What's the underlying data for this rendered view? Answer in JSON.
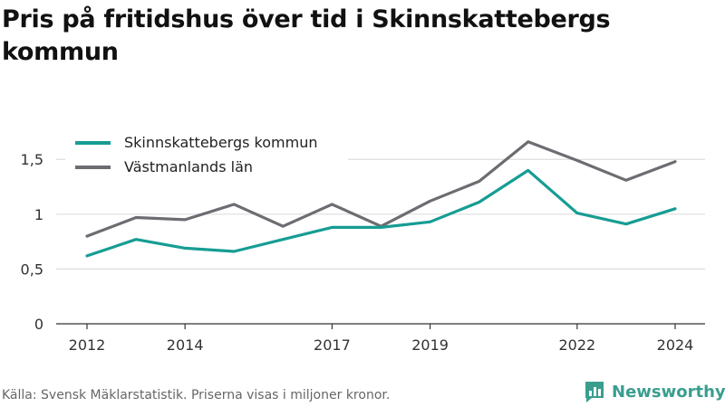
{
  "title": "Pris på fritidshus över tid i Skinnskattebergs kommun",
  "source": "Källa: Svensk Mäklarstatistik. Priserna visas i miljoner kronor.",
  "brand": {
    "name": "Newsworthy",
    "icon": "bar-chart-speech-bubble-icon",
    "color": "#3a9e8f"
  },
  "chart_data": {
    "type": "line",
    "x": [
      2012,
      2013,
      2014,
      2015,
      2016,
      2017,
      2018,
      2019,
      2020,
      2021,
      2022,
      2023,
      2024
    ],
    "x_ticks": [
      2012,
      2014,
      2017,
      2019,
      2022,
      2024
    ],
    "y_ticks": [
      0,
      0.5,
      1,
      1.5
    ],
    "y_tick_labels": [
      "0",
      "0,5",
      "1",
      "1,5"
    ],
    "ylim": [
      0,
      1.7
    ],
    "grid": true,
    "legend_position": "top-left",
    "series": [
      {
        "name": "Skinnskattebergs kommun",
        "color": "#169d93",
        "values": [
          0.62,
          0.77,
          0.69,
          0.66,
          0.77,
          0.88,
          0.88,
          0.93,
          1.11,
          1.4,
          1.01,
          0.91,
          1.05
        ]
      },
      {
        "name": "Västmanlands län",
        "color": "#6d6c72",
        "values": [
          0.8,
          0.97,
          0.95,
          1.09,
          0.89,
          1.09,
          0.89,
          1.12,
          1.3,
          1.66,
          1.49,
          1.31,
          1.48
        ]
      }
    ]
  }
}
